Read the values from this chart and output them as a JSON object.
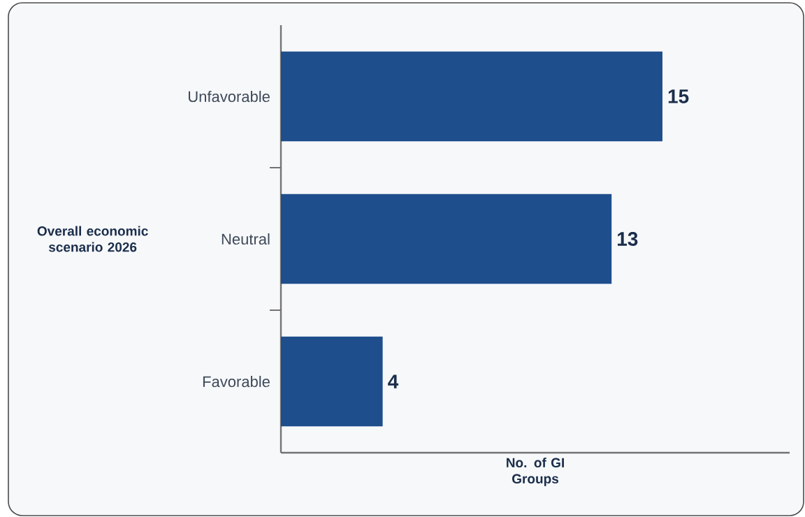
{
  "chart_data": {
    "type": "bar",
    "orientation": "horizontal",
    "xlabel": "No. of GI Groups",
    "ylabel": "Overall economic scenario 2026",
    "categories": [
      "Unfavorable",
      "Neutral",
      "Favorable"
    ],
    "values": [
      15,
      13,
      4
    ],
    "color": "#1f4e8c",
    "xlim": [
      0,
      20
    ],
    "data_labels": true,
    "tick_labels": "y"
  }
}
